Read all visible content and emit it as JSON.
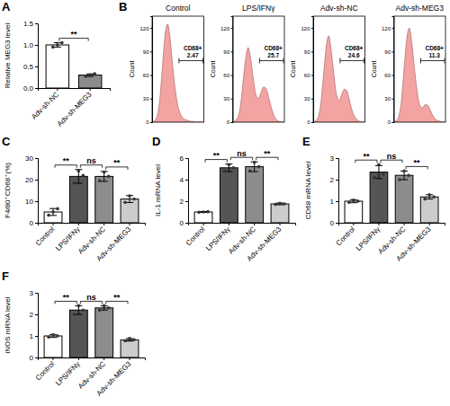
{
  "chart_data": [
    {
      "panel": "A",
      "type": "bar",
      "ylabel": "Relative MEG3 level",
      "categories": [
        "Adv-sh-NC",
        "Adv-sh-MEG3"
      ],
      "values": [
        1.0,
        0.3
      ],
      "errors": [
        0.05,
        0.03
      ],
      "points": [
        [
          0.95,
          1.0,
          1.05
        ],
        [
          0.27,
          0.3,
          0.33
        ]
      ],
      "colors": [
        "#ffffff",
        "#8c8c8c"
      ],
      "ylim": [
        0,
        1.5
      ],
      "yticks": [
        {
          "value": 0,
          "label": "0.0"
        },
        0.5,
        {
          "value": 1,
          "label": "1.0"
        },
        1.5
      ],
      "comparisons": [
        {
          "categories": [
            "Adv-sh-NC",
            "Adv-sh-MEG3"
          ],
          "label": "**"
        }
      ]
    },
    {
      "panel": "B",
      "type": "area",
      "ylabel": "Count",
      "xlim": [
        0,
        100
      ],
      "ylim": [
        0,
        135
      ],
      "yticks": [
        0,
        30,
        60,
        90,
        120
      ],
      "tick_labels": "y",
      "color": "#f4a3a3",
      "gate_label": "CD68+",
      "x": [
        0,
        5,
        10,
        15,
        20,
        25,
        30,
        35,
        40,
        45,
        50,
        55,
        60,
        65,
        70,
        75,
        80,
        85,
        90,
        95,
        100
      ],
      "series": [
        {
          "name": "Control",
          "values": [
            0,
            2,
            8,
            30,
            70,
            110,
            125,
            105,
            70,
            40,
            20,
            10,
            5,
            3,
            2,
            1,
            1,
            0,
            0,
            0,
            0
          ],
          "gate": [
            52,
            100
          ],
          "percent": 2.47
        },
        {
          "name": "LPS/IFNγ",
          "values": [
            0,
            2,
            6,
            20,
            50,
            80,
            95,
            80,
            55,
            35,
            30,
            38,
            45,
            42,
            30,
            18,
            8,
            3,
            1,
            0,
            0
          ],
          "gate": [
            52,
            100
          ],
          "percent": 25.7
        },
        {
          "name": "Adv-sh-NC",
          "values": [
            0,
            2,
            7,
            25,
            60,
            95,
            110,
            90,
            60,
            35,
            28,
            35,
            42,
            40,
            28,
            15,
            7,
            3,
            1,
            0,
            0
          ],
          "gate": [
            52,
            100
          ],
          "percent": 24.6
        },
        {
          "name": "Adv-sh-MEG3",
          "values": [
            0,
            2,
            8,
            28,
            68,
            105,
            120,
            100,
            68,
            40,
            22,
            18,
            22,
            22,
            16,
            9,
            4,
            2,
            1,
            0,
            0
          ],
          "gate": [
            52,
            100
          ],
          "percent": 11.3
        }
      ]
    },
    {
      "panel": "C",
      "type": "bar",
      "ylabel": "F4/80⁺CD68⁺(%)",
      "categories": [
        "Control",
        "LPS/IFNγ",
        "Adv-sh-NC",
        "Adv-sh-MEG3"
      ],
      "values": [
        5,
        21.5,
        21.5,
        11
      ],
      "errors": [
        1.6,
        3.2,
        2.3,
        1.6
      ],
      "points": [
        [
          3.5,
          5,
          6.5
        ],
        [
          18.5,
          24,
          22
        ],
        [
          19.5,
          23.5,
          21.5
        ],
        [
          9.5,
          12.5,
          11
        ]
      ],
      "colors": [
        "#ffffff",
        "#555555",
        "#8c8c8c",
        "#cccccc"
      ],
      "ylim": [
        0,
        30
      ],
      "yticks": [
        0,
        10,
        20,
        30
      ],
      "comparisons": [
        {
          "categories": [
            "Control",
            "LPS/IFNγ"
          ],
          "label": "**"
        },
        {
          "categories": [
            "LPS/IFNγ",
            "Adv-sh-NC"
          ],
          "label": "ns"
        },
        {
          "categories": [
            "Adv-sh-NC",
            "Adv-sh-MEG3"
          ],
          "label": "**"
        }
      ]
    },
    {
      "panel": "D",
      "type": "bar",
      "ylabel": "IL-1 mRNA level",
      "categories": [
        "Control",
        "LPS/IFNγ",
        "Adv-sh-NC",
        "Adv-sh-MEG3"
      ],
      "values": [
        1.0,
        5.1,
        5.2,
        1.75
      ],
      "errors": [
        0.04,
        0.35,
        0.45,
        0.08
      ],
      "points": [
        [
          0.97,
          1.0,
          1.03
        ],
        [
          4.8,
          5.4,
          5.1
        ],
        [
          4.8,
          5.6,
          5.2
        ],
        [
          1.7,
          1.8,
          1.75
        ]
      ],
      "colors": [
        "#ffffff",
        "#555555",
        "#8c8c8c",
        "#cccccc"
      ],
      "ylim": [
        0,
        6
      ],
      "yticks": [
        0,
        2,
        4,
        6
      ],
      "comparisons": [
        {
          "categories": [
            "Control",
            "LPS/IFNγ"
          ],
          "label": "**"
        },
        {
          "categories": [
            "LPS/IFNγ",
            "Adv-sh-NC"
          ],
          "label": "ns"
        },
        {
          "categories": [
            "Adv-sh-NC",
            "Adv-sh-MEG3"
          ],
          "label": "**"
        }
      ]
    },
    {
      "panel": "E",
      "type": "bar",
      "ylabel": "CD68 mRNA level",
      "categories": [
        "Control",
        "LPS/IFNγ",
        "Adv-sh-NC",
        "Adv-sh-MEG3"
      ],
      "values": [
        1.0,
        2.35,
        2.2,
        1.2
      ],
      "errors": [
        0.07,
        0.3,
        0.2,
        0.1
      ],
      "points": [
        [
          0.95,
          1.05,
          1.0
        ],
        [
          2.1,
          2.7,
          2.25
        ],
        [
          2.0,
          2.4,
          2.2
        ],
        [
          1.1,
          1.3,
          1.2
        ]
      ],
      "colors": [
        "#ffffff",
        "#555555",
        "#8c8c8c",
        "#cccccc"
      ],
      "ylim": [
        0,
        3
      ],
      "yticks": [
        0,
        1,
        2,
        3
      ],
      "comparisons": [
        {
          "categories": [
            "Control",
            "LPS/IFNγ"
          ],
          "label": "**"
        },
        {
          "categories": [
            "LPS/IFNγ",
            "Adv-sh-NC"
          ],
          "label": "ns"
        },
        {
          "categories": [
            "Adv-sh-NC",
            "Adv-sh-MEG3"
          ],
          "label": "**"
        }
      ]
    },
    {
      "panel": "F",
      "type": "bar",
      "ylabel": "iNOS mRNA level",
      "categories": [
        "Control",
        "LPS/IFNγ",
        "Adv-sh-NC",
        "Adv-sh-MEG3"
      ],
      "values": [
        1.0,
        2.2,
        2.3,
        0.82
      ],
      "errors": [
        0.07,
        0.2,
        0.1,
        0.06
      ],
      "points": [
        [
          0.95,
          1.05,
          1.0
        ],
        [
          2.0,
          2.4,
          2.2
        ],
        [
          2.2,
          2.4,
          2.3
        ],
        [
          0.77,
          0.88,
          0.82
        ]
      ],
      "colors": [
        "#ffffff",
        "#555555",
        "#8c8c8c",
        "#cccccc"
      ],
      "ylim": [
        0,
        3
      ],
      "yticks": [
        0,
        1,
        2,
        3
      ],
      "comparisons": [
        {
          "categories": [
            "Control",
            "LPS/IFNγ"
          ],
          "label": "**"
        },
        {
          "categories": [
            "LPS/IFNγ",
            "Adv-sh-NC"
          ],
          "label": "ns"
        },
        {
          "categories": [
            "Adv-sh-NC",
            "Adv-sh-MEG3"
          ],
          "label": "**"
        }
      ]
    }
  ]
}
